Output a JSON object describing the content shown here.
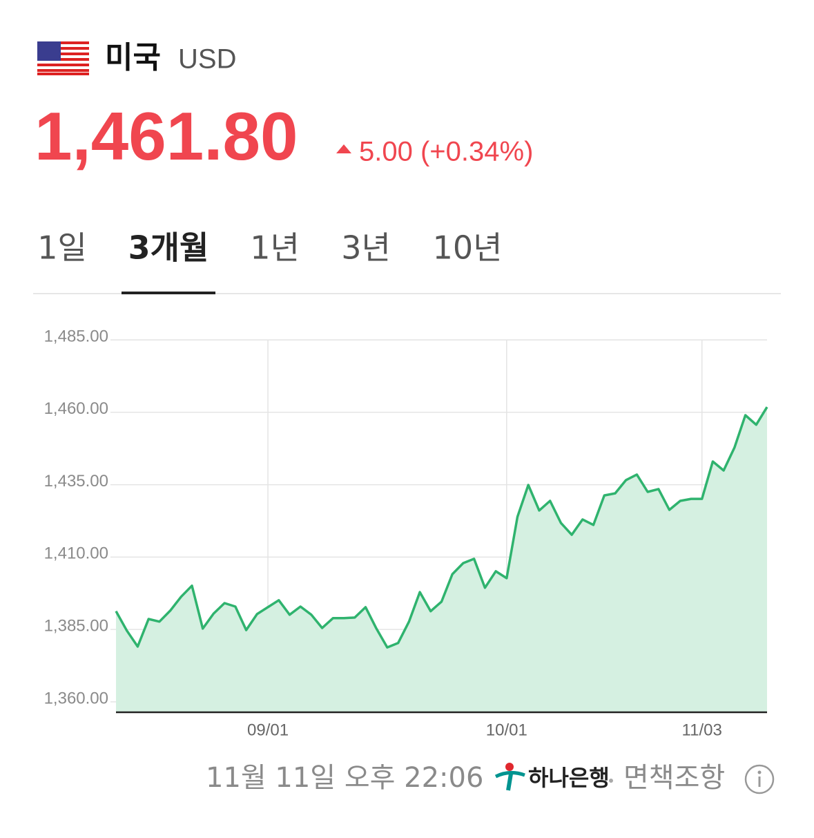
{
  "header": {
    "country": "미국",
    "currency": "USD",
    "price": "1,461.80",
    "change": "5.00 (+0.34%)"
  },
  "tabs": [
    "1일",
    "3개월",
    "1년",
    "3년",
    "10년"
  ],
  "footer": {
    "timestamp": "11월 11일 오후 22:06",
    "bank": "하나은행",
    "disclaimer": "면책조항"
  },
  "chart_data": {
    "type": "area",
    "categories": [
      null,
      null,
      null,
      null,
      null,
      null,
      null,
      null,
      null,
      null,
      null,
      null,
      null,
      null,
      "09/01",
      null,
      null,
      null,
      null,
      null,
      null,
      null,
      null,
      null,
      null,
      null,
      null,
      null,
      null,
      null,
      null,
      null,
      null,
      null,
      null,
      null,
      "10/01",
      null,
      null,
      null,
      null,
      null,
      null,
      null,
      null,
      null,
      null,
      null,
      null,
      null,
      null,
      null,
      null,
      null,
      "11/03",
      null,
      null,
      null,
      null,
      null,
      null
    ],
    "series": [
      {
        "color": "#2fb36e",
        "values": [
          1391.3,
          1384.6,
          1379.1,
          1388.6,
          1387.7,
          1391.5,
          1396.3,
          1400.1,
          1385.3,
          1390.5,
          1394.1,
          1392.9,
          1384.8,
          1390.3,
          1392.7,
          1395.1,
          1390.1,
          1392.9,
          1390.1,
          1385.5,
          1388.9,
          1388.9,
          1389.1,
          1392.7,
          1385.3,
          1378.8,
          1380.3,
          1387.7,
          1397.9,
          1391.3,
          1394.6,
          1404.1,
          1407.9,
          1409.4,
          1399.4,
          1405.1,
          1402.7,
          1423.9,
          1434.9,
          1426.1,
          1429.4,
          1421.8,
          1417.7,
          1423.0,
          1421.1,
          1431.3,
          1432.0,
          1436.6,
          1438.5,
          1432.5,
          1433.5,
          1426.3,
          1429.4,
          1430.1,
          1430.1,
          1443.0,
          1439.9,
          1447.8,
          1459.0,
          1455.7,
          1461.8
        ]
      }
    ],
    "ylim": [
      1356.4,
      1485
    ],
    "yticks": [
      {
        "value": 1360,
        "label": "1,360.00"
      },
      {
        "value": 1385,
        "label": "1,385.00"
      },
      {
        "value": 1410,
        "label": "1,410.00"
      },
      {
        "value": 1435,
        "label": "1,435.00"
      },
      {
        "value": 1460,
        "label": "1,460.00"
      },
      {
        "value": 1485,
        "label": "1,485.00"
      }
    ],
    "grid": true
  }
}
